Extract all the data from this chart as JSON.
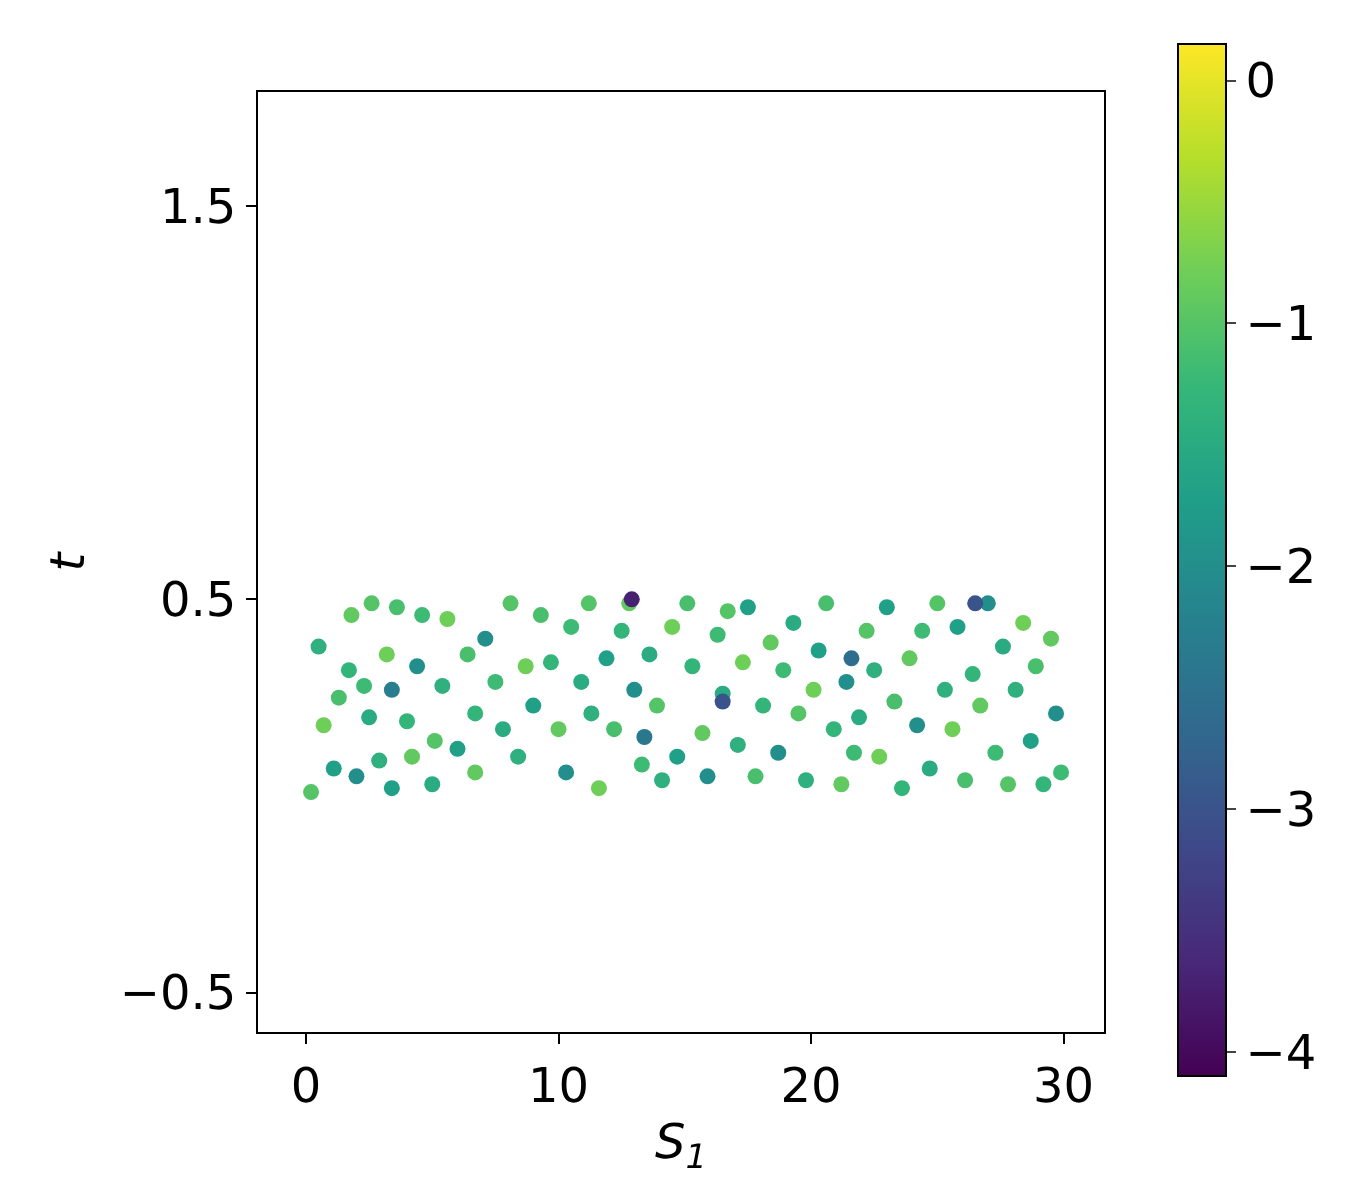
{
  "chart_data": {
    "type": "scatter",
    "xlabel": "S$_{1}$",
    "ylabel": "t",
    "x": [
      0.2,
      0.5,
      0.7,
      1.1,
      1.3,
      1.7,
      1.8,
      2.0,
      2.3,
      2.5,
      2.6,
      2.9,
      3.2,
      3.4,
      3.6,
      4.0,
      4.2,
      4.4,
      4.6,
      5.0,
      5.1,
      5.4,
      5.6,
      6.0,
      6.4,
      6.7,
      6.7,
      7.1,
      7.5,
      7.8,
      8.1,
      8.4,
      8.7,
      9.0,
      9.3,
      9.7,
      10.0,
      10.3,
      10.5,
      10.9,
      11.2,
      11.3,
      11.6,
      11.9,
      12.2,
      12.5,
      12.8,
      13.0,
      13.3,
      13.6,
      13.9,
      14.1,
      14.5,
      14.7,
      15.1,
      15.3,
      15.7,
      15.9,
      16.3,
      16.5,
      16.7,
      17.1,
      17.3,
      17.5,
      17.8,
      18.1,
      18.4,
      18.7,
      18.9,
      19.3,
      19.5,
      19.8,
      20.1,
      20.3,
      20.6,
      20.9,
      21.2,
      21.4,
      21.7,
      21.9,
      22.2,
      22.5,
      22.7,
      23.0,
      23.3,
      23.6,
      23.9,
      24.2,
      24.4,
      24.7,
      25.0,
      25.3,
      25.6,
      25.8,
      26.1,
      26.4,
      26.7,
      27.0,
      27.3,
      27.6,
      27.8,
      28.1,
      28.4,
      28.7,
      28.9,
      29.2,
      29.5,
      29.7,
      29.9,
      12.9,
      26.5,
      16.5,
      21.6,
      3.4,
      13.4
    ],
    "values": [
      0.01,
      0.38,
      0.18,
      0.07,
      0.25,
      0.32,
      0.46,
      0.05,
      0.28,
      0.2,
      0.49,
      0.09,
      0.36,
      0.02,
      0.48,
      0.19,
      0.1,
      0.33,
      0.46,
      0.03,
      0.14,
      0.28,
      0.45,
      0.12,
      0.36,
      0.21,
      0.06,
      0.4,
      0.29,
      0.17,
      0.49,
      0.1,
      0.33,
      0.23,
      0.46,
      0.34,
      0.17,
      0.06,
      0.43,
      0.29,
      0.49,
      0.21,
      0.02,
      0.35,
      0.17,
      0.42,
      0.49,
      0.27,
      0.08,
      0.36,
      0.23,
      0.04,
      0.43,
      0.1,
      0.49,
      0.33,
      0.16,
      0.05,
      0.41,
      0.26,
      0.47,
      0.13,
      0.34,
      0.48,
      0.05,
      0.23,
      0.39,
      0.11,
      0.32,
      0.44,
      0.21,
      0.04,
      0.27,
      0.37,
      0.49,
      0.17,
      0.03,
      0.29,
      0.11,
      0.2,
      0.42,
      0.32,
      0.1,
      0.48,
      0.24,
      0.02,
      0.35,
      0.18,
      0.42,
      0.07,
      0.49,
      0.27,
      0.17,
      0.43,
      0.04,
      0.31,
      0.23,
      0.49,
      0.11,
      0.38,
      0.03,
      0.27,
      0.44,
      0.14,
      0.33,
      0.03,
      0.4,
      0.21,
      0.06,
      0.5,
      0.49,
      0.24,
      0.35,
      0.27,
      0.15
    ],
    "cvalues": [
      -1.0,
      -1.4,
      -0.8,
      -1.7,
      -1.1,
      -1.3,
      -0.9,
      -2.0,
      -1.2,
      -1.5,
      -1.0,
      -1.4,
      -0.8,
      -1.7,
      -1.1,
      -1.3,
      -0.9,
      -2.0,
      -1.2,
      -1.5,
      -1.0,
      -1.4,
      -0.8,
      -1.7,
      -1.1,
      -1.3,
      -0.9,
      -2.0,
      -1.2,
      -1.5,
      -1.0,
      -1.4,
      -0.8,
      -1.7,
      -1.1,
      -1.3,
      -0.9,
      -2.0,
      -1.2,
      -1.5,
      -1.0,
      -1.4,
      -0.8,
      -1.7,
      -1.1,
      -1.3,
      -0.9,
      -2.0,
      -1.2,
      -1.5,
      -1.0,
      -1.4,
      -0.8,
      -1.7,
      -1.1,
      -1.3,
      -0.9,
      -2.0,
      -1.2,
      -1.5,
      -1.0,
      -1.4,
      -0.8,
      -1.7,
      -1.1,
      -1.3,
      -0.9,
      -2.0,
      -1.2,
      -1.5,
      -1.0,
      -1.4,
      -0.8,
      -1.7,
      -1.1,
      -1.3,
      -0.9,
      -2.0,
      -1.2,
      -1.5,
      -1.0,
      -1.4,
      -0.8,
      -1.7,
      -1.1,
      -1.3,
      -0.9,
      -2.0,
      -1.2,
      -1.5,
      -1.0,
      -1.4,
      -0.8,
      -1.7,
      -1.1,
      -1.3,
      -0.9,
      -2.0,
      -1.2,
      -1.5,
      -1.0,
      -1.4,
      -0.8,
      -1.7,
      -1.1,
      -1.3,
      -0.9,
      -2.0,
      -1.2,
      -3.7,
      -3.0,
      -3.0,
      -2.6,
      -2.3,
      -2.4
    ],
    "xlim": [
      -1.9,
      31.6
    ],
    "ylim": [
      -0.6,
      1.79
    ],
    "xticks": [
      0,
      10,
      20,
      30
    ],
    "yticks": [
      {
        "value": -0.5,
        "label": "−0.5"
      },
      0.5,
      1.5
    ],
    "clim": [
      -4.1,
      0.15
    ],
    "cticks": [
      {
        "value": -4,
        "label": "−4"
      },
      {
        "value": -3,
        "label": "−3"
      },
      {
        "value": -2,
        "label": "−2"
      },
      {
        "value": -1,
        "label": "−1"
      },
      0
    ],
    "marker": "circle"
  }
}
